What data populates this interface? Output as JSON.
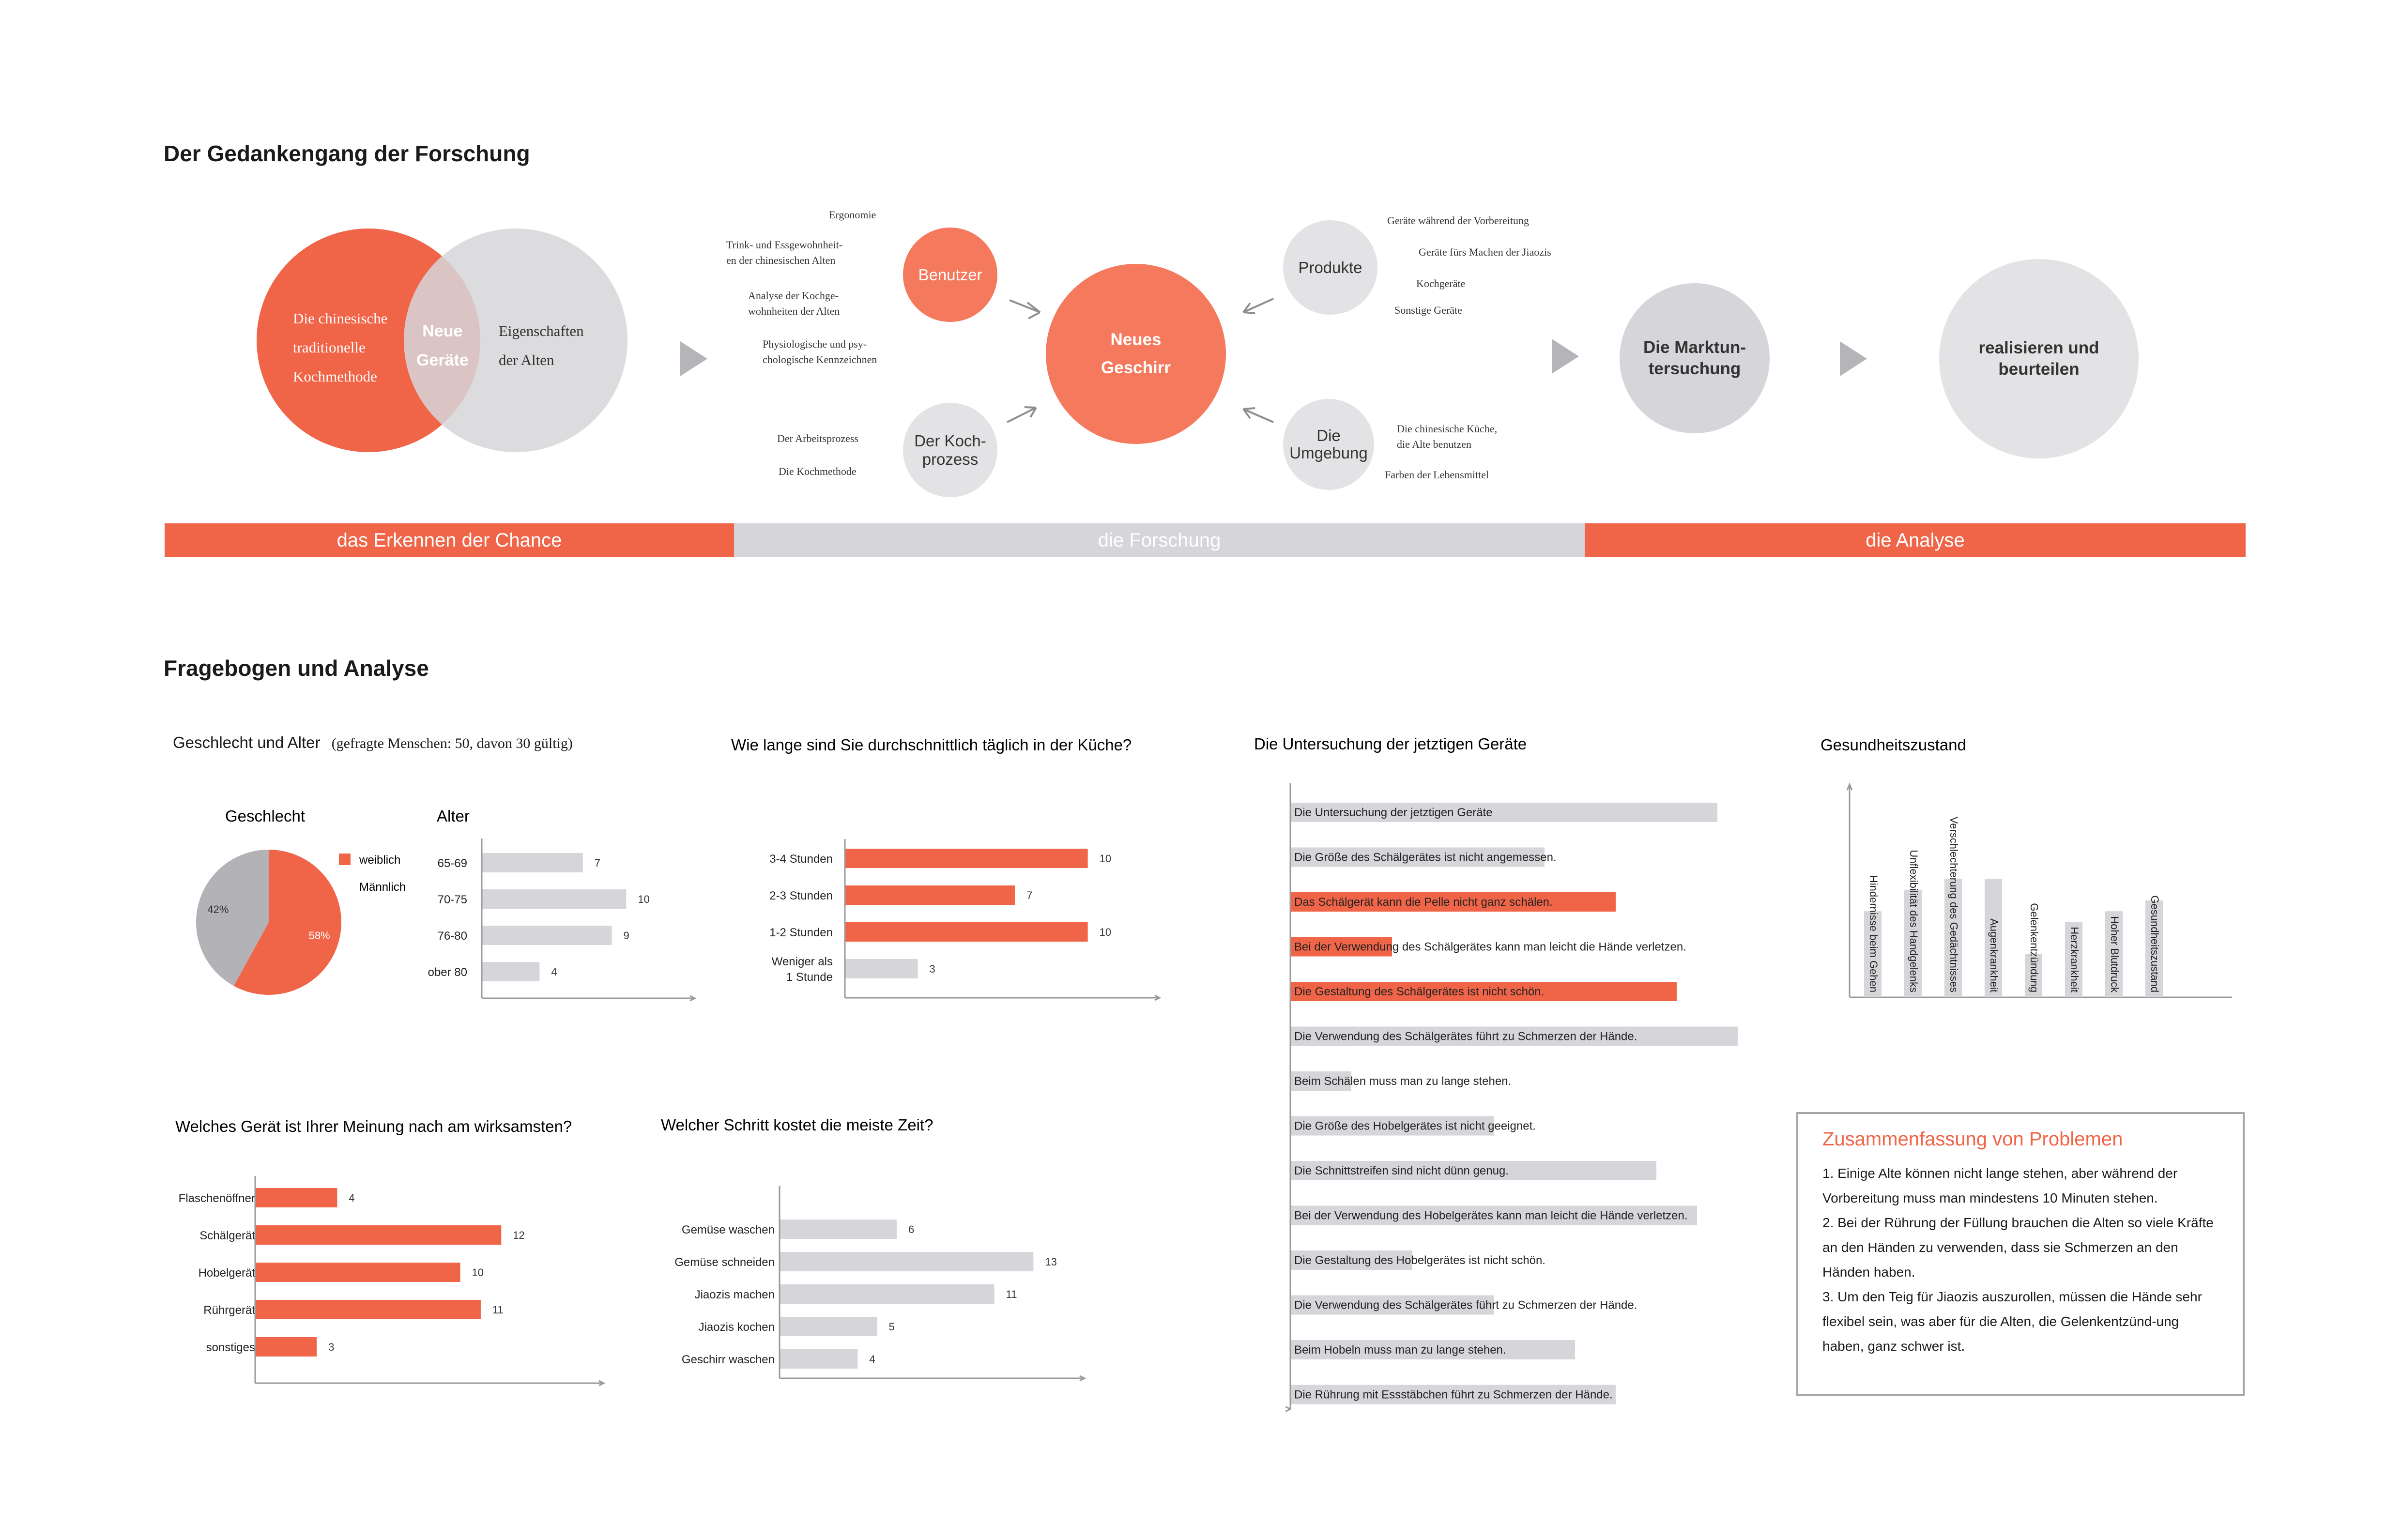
{
  "colors": {
    "accent": "#f06548",
    "grey": "#d6d5d9",
    "circle_grey": "#e3e2e4"
  },
  "section1": {
    "title": "Der Gedankengang der Forschung",
    "venn": {
      "left": [
        "Die chinesische",
        "traditionelle",
        "Kochmethode"
      ],
      "center": [
        "Neue",
        "Geräte"
      ],
      "right": [
        "Eigenschaften",
        "der Alten"
      ]
    },
    "benutzer": "Benutzer",
    "benutzer_notes": [
      "Ergonomie",
      "Trink- und Essgewohnheit-",
      "en der chinesischen Alten",
      "Analyse der Kochge-",
      "wohnheiten der Alten",
      "Physiologische und psy-",
      "chologische Kennzeichnen"
    ],
    "kochprozess": [
      "Der Koch-",
      "prozess"
    ],
    "kochprozess_notes": [
      "Der Arbeitsprozess",
      "Die Kochmethode"
    ],
    "center": [
      "Neues",
      "Geschirr"
    ],
    "produkte": "Produkte",
    "produkte_notes": [
      "Geräte während der Vorbereitung",
      "Geräte fürs Machen der Jiaozis",
      "Kochgeräte",
      "Sonstige Geräte"
    ],
    "umgebung": [
      "Die",
      "Umgebung"
    ],
    "umgebung_notes": [
      "Die chinesische Küche,",
      "die Alte benutzen",
      "Farben der Lebensmittel"
    ],
    "markt": [
      "Die Marktun-",
      "tersuchung"
    ],
    "realisieren": [
      "realisieren und",
      "beurteilen"
    ],
    "phases": [
      "das Erkennen der Chance",
      "die Forschung",
      "die Analyse"
    ]
  },
  "section2": {
    "title": "Fragebogen und Analyse",
    "chart1_title": "Geschlecht und Alter",
    "chart1_note": "(gefragte Menschen: 50,  davon 30 gültig)",
    "summary": {
      "title": "Zusammenfassung von Problemen",
      "items": [
        "1. Einige Alte können nicht lange stehen, aber während der Vorbereitung muss man mindestens 10 Minuten stehen.",
        "2. Bei der Rührung der Füllung brauchen die Alten so viele Kräfte an den Händen zu verwenden, dass sie Schmerzen an den Händen haben.",
        "3. Um den Teig für Jiaozis auszurollen, müssen die Hände sehr flexibel sein, was aber für die Alten, die Gelenkentzünd-ung haben, ganz schwer ist."
      ]
    }
  },
  "chart_data": [
    {
      "id": "gender",
      "type": "pie",
      "title": "Geschlecht",
      "labels": [
        "weiblich",
        "Männlich"
      ],
      "values": [
        58,
        42
      ],
      "value_labels": [
        "58%",
        "42%"
      ],
      "colors": [
        "#f06548",
        "#b3b2b6"
      ],
      "legend_position": "right"
    },
    {
      "id": "age",
      "type": "bar",
      "orientation": "horizontal",
      "title": "Alter",
      "categories": [
        "65-69",
        "70-75",
        "76-80",
        "ober 80"
      ],
      "values": [
        7,
        10,
        9,
        4
      ],
      "xlim": [
        0,
        12
      ],
      "color": "#d6d5d9"
    },
    {
      "id": "kitchen_time",
      "type": "bar",
      "orientation": "horizontal",
      "title": "Wie lange sind Sie durchschnittlich täglich in der Küche?",
      "categories": [
        "3-4 Stunden",
        "2-3 Stunden",
        "1-2 Stunden",
        "Weniger als 1 Stunde"
      ],
      "values": [
        10,
        7,
        10,
        3
      ],
      "xlim": [
        0,
        12
      ],
      "colors": [
        "#f06548",
        "#f06548",
        "#f06548",
        "#d6d5d9"
      ]
    },
    {
      "id": "devices",
      "type": "bar",
      "orientation": "horizontal",
      "title": "Die Untersuchung der jetztigen Geräte",
      "categories": [
        "Die Untersuchung der jetztigen Geräte",
        "Die Größe des Schälgerätes ist nicht angemessen.",
        "Das Schälgerät kann die Pelle nicht ganz schälen.",
        "Bei der Verwendung des Schälgerätes kann man leicht die Hände verletzen.",
        "Die Gestaltung des Schälgerätes ist nicht schön.",
        "Die Verwendung des Schälgerätes führt zu Schmerzen der Hände.",
        "Beim Schälen muss man zu lange stehen.",
        "Die Größe des Hobelgerätes ist nicht geeignet.",
        "Die Schnittstreifen sind nicht dünn genug.",
        "Bei der Verwendung des Hobelgerätes kann man leicht die Hände verletzen.",
        "Die Gestaltung des Hobelgerätes ist nicht schön.",
        "Die Verwendung des Schälgerätes führt zu Schmerzen der Hände.",
        "Beim Hobeln muss man zu lange stehen.",
        "Die Rührung mit Essstäbchen führt zu Schmerzen der Hände."
      ],
      "values": [
        21,
        12.5,
        16,
        5,
        19,
        22,
        3,
        10,
        18,
        20,
        6,
        10,
        14,
        16
      ],
      "xlim": [
        0,
        24
      ],
      "colors": [
        "#d6d5d9",
        "#d6d5d9",
        "#f06548",
        "#f06548",
        "#f06548",
        "#d6d5d9",
        "#d6d5d9",
        "#d6d5d9",
        "#d6d5d9",
        "#d6d5d9",
        "#d6d5d9",
        "#d6d5d9",
        "#d6d5d9",
        "#d6d5d9"
      ]
    },
    {
      "id": "health",
      "type": "bar",
      "orientation": "vertical",
      "title": "Gesundheitszustand",
      "categories": [
        "Hindernisse beim Gehen",
        "Unflexibilität des Handgelenks",
        "Verschlechterung des Gedächtnisses",
        "Augenkrankheit",
        "Gelenkentzündung",
        "Herzkrankheit",
        "Hoher Blutdruck",
        "Gesundheitszustand"
      ],
      "values": [
        8,
        10,
        11,
        11,
        4,
        7,
        8,
        9
      ],
      "ylim": [
        0,
        18
      ],
      "color": "#d6d5d9"
    },
    {
      "id": "effective_device",
      "type": "bar",
      "orientation": "horizontal",
      "title": "Welches Gerät ist Ihrer Meinung nach am wirksamsten?",
      "categories": [
        "Flaschenöffner",
        "Schälgerät",
        "Hobelgerät",
        "Rührgerät",
        "sonstiges"
      ],
      "values": [
        4,
        12,
        10,
        11,
        3
      ],
      "xlim": [
        0,
        14
      ],
      "color": "#f06548"
    },
    {
      "id": "time_step",
      "type": "bar",
      "orientation": "horizontal",
      "title": "Welcher Schritt kostet die meiste Zeit?",
      "categories": [
        "Gemüse waschen",
        "Gemüse schneiden",
        "Jiaozis machen",
        "Jiaozis kochen",
        "Geschirr waschen"
      ],
      "values": [
        6,
        13,
        11,
        5,
        4
      ],
      "xlim": [
        0,
        15
      ],
      "color": "#d6d5d9"
    }
  ]
}
